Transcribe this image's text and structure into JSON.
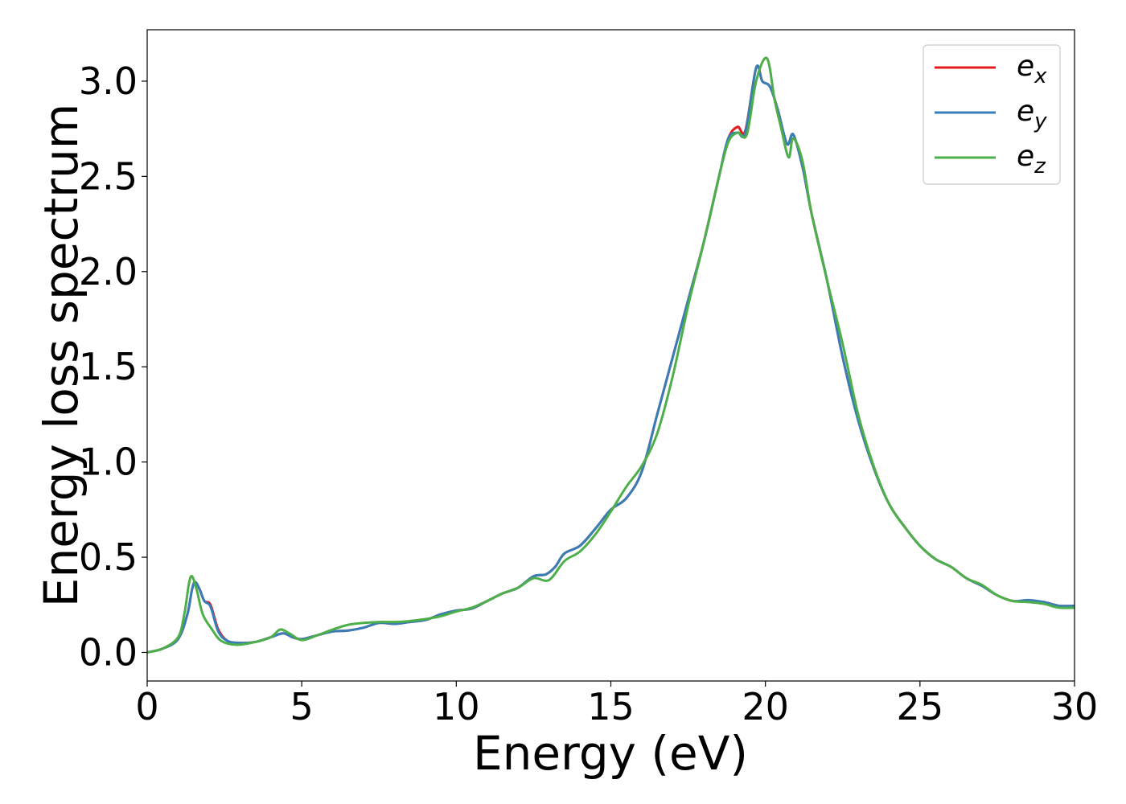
{
  "chart_data": {
    "type": "line",
    "xlabel": "Energy (eV)",
    "ylabel": "Energy loss spectrum",
    "xlim": [
      0,
      30
    ],
    "ylim": [
      -0.15,
      3.27
    ],
    "xticks": [
      0,
      5,
      10,
      15,
      20,
      25,
      30
    ],
    "yticks": [
      0.0,
      0.5,
      1.0,
      1.5,
      2.0,
      2.5,
      3.0
    ],
    "grid": false,
    "legend_position": "top-right",
    "series": [
      {
        "name": "e_x",
        "label_base": "e",
        "label_sub": "x",
        "color": "#e41a1c",
        "points": [
          [
            0,
            0
          ],
          [
            0.5,
            0.02
          ],
          [
            1.0,
            0.07
          ],
          [
            1.3,
            0.2
          ],
          [
            1.45,
            0.33
          ],
          [
            1.55,
            0.37
          ],
          [
            1.7,
            0.33
          ],
          [
            1.85,
            0.27
          ],
          [
            2.05,
            0.25
          ],
          [
            2.3,
            0.12
          ],
          [
            2.6,
            0.06
          ],
          [
            3.0,
            0.05
          ],
          [
            3.5,
            0.055
          ],
          [
            4.0,
            0.08
          ],
          [
            4.4,
            0.1
          ],
          [
            4.7,
            0.08
          ],
          [
            5.0,
            0.07
          ],
          [
            5.5,
            0.09
          ],
          [
            6.0,
            0.11
          ],
          [
            6.5,
            0.115
          ],
          [
            7.0,
            0.13
          ],
          [
            7.5,
            0.155
          ],
          [
            8.0,
            0.15
          ],
          [
            8.5,
            0.16
          ],
          [
            9.0,
            0.17
          ],
          [
            9.5,
            0.2
          ],
          [
            10.0,
            0.22
          ],
          [
            10.5,
            0.23
          ],
          [
            11.0,
            0.27
          ],
          [
            11.5,
            0.31
          ],
          [
            12.0,
            0.34
          ],
          [
            12.5,
            0.4
          ],
          [
            12.9,
            0.41
          ],
          [
            13.2,
            0.45
          ],
          [
            13.5,
            0.52
          ],
          [
            14.0,
            0.56
          ],
          [
            14.5,
            0.65
          ],
          [
            15.0,
            0.75
          ],
          [
            15.5,
            0.81
          ],
          [
            16.0,
            0.95
          ],
          [
            16.5,
            1.25
          ],
          [
            17.0,
            1.55
          ],
          [
            17.5,
            1.85
          ],
          [
            18.0,
            2.15
          ],
          [
            18.5,
            2.5
          ],
          [
            18.8,
            2.7
          ],
          [
            19.1,
            2.76
          ],
          [
            19.35,
            2.74
          ],
          [
            19.7,
            3.07
          ],
          [
            19.9,
            3.0
          ],
          [
            20.15,
            2.97
          ],
          [
            20.4,
            2.85
          ],
          [
            20.7,
            2.67
          ],
          [
            20.9,
            2.72
          ],
          [
            21.2,
            2.55
          ],
          [
            21.5,
            2.3
          ],
          [
            22.0,
            1.95
          ],
          [
            22.5,
            1.55
          ],
          [
            23.0,
            1.22
          ],
          [
            23.5,
            0.97
          ],
          [
            24.0,
            0.78
          ],
          [
            24.5,
            0.66
          ],
          [
            25.0,
            0.56
          ],
          [
            25.5,
            0.49
          ],
          [
            26.0,
            0.45
          ],
          [
            26.5,
            0.39
          ],
          [
            27.0,
            0.35
          ],
          [
            27.5,
            0.3
          ],
          [
            28.0,
            0.27
          ],
          [
            28.5,
            0.27
          ],
          [
            29.0,
            0.265
          ],
          [
            29.5,
            0.245
          ],
          [
            30.0,
            0.245
          ]
        ]
      },
      {
        "name": "e_y",
        "label_base": "e",
        "label_sub": "y",
        "color": "#377eb8",
        "points": [
          [
            0,
            0
          ],
          [
            0.5,
            0.02
          ],
          [
            1.0,
            0.07
          ],
          [
            1.3,
            0.2
          ],
          [
            1.45,
            0.33
          ],
          [
            1.55,
            0.37
          ],
          [
            1.7,
            0.33
          ],
          [
            1.85,
            0.27
          ],
          [
            2.05,
            0.24
          ],
          [
            2.3,
            0.11
          ],
          [
            2.6,
            0.06
          ],
          [
            3.0,
            0.05
          ],
          [
            3.5,
            0.055
          ],
          [
            4.0,
            0.08
          ],
          [
            4.4,
            0.1
          ],
          [
            4.7,
            0.08
          ],
          [
            5.0,
            0.07
          ],
          [
            5.5,
            0.09
          ],
          [
            6.0,
            0.11
          ],
          [
            6.5,
            0.115
          ],
          [
            7.0,
            0.13
          ],
          [
            7.5,
            0.155
          ],
          [
            8.0,
            0.15
          ],
          [
            8.5,
            0.16
          ],
          [
            9.0,
            0.17
          ],
          [
            9.5,
            0.2
          ],
          [
            10.0,
            0.22
          ],
          [
            10.5,
            0.23
          ],
          [
            11.0,
            0.27
          ],
          [
            11.5,
            0.31
          ],
          [
            12.0,
            0.34
          ],
          [
            12.5,
            0.4
          ],
          [
            12.9,
            0.41
          ],
          [
            13.2,
            0.45
          ],
          [
            13.5,
            0.52
          ],
          [
            14.0,
            0.56
          ],
          [
            14.5,
            0.65
          ],
          [
            15.0,
            0.75
          ],
          [
            15.5,
            0.81
          ],
          [
            16.0,
            0.95
          ],
          [
            16.5,
            1.25
          ],
          [
            17.0,
            1.55
          ],
          [
            17.5,
            1.85
          ],
          [
            18.0,
            2.15
          ],
          [
            18.5,
            2.5
          ],
          [
            18.8,
            2.7
          ],
          [
            19.1,
            2.73
          ],
          [
            19.35,
            2.73
          ],
          [
            19.7,
            3.07
          ],
          [
            19.9,
            3.0
          ],
          [
            20.15,
            2.97
          ],
          [
            20.4,
            2.85
          ],
          [
            20.7,
            2.67
          ],
          [
            20.9,
            2.72
          ],
          [
            21.2,
            2.55
          ],
          [
            21.5,
            2.3
          ],
          [
            22.0,
            1.95
          ],
          [
            22.5,
            1.55
          ],
          [
            23.0,
            1.22
          ],
          [
            23.5,
            0.97
          ],
          [
            24.0,
            0.78
          ],
          [
            24.5,
            0.66
          ],
          [
            25.0,
            0.56
          ],
          [
            25.5,
            0.49
          ],
          [
            26.0,
            0.45
          ],
          [
            26.5,
            0.39
          ],
          [
            27.0,
            0.35
          ],
          [
            27.5,
            0.3
          ],
          [
            28.0,
            0.27
          ],
          [
            28.5,
            0.275
          ],
          [
            29.0,
            0.265
          ],
          [
            29.5,
            0.245
          ],
          [
            30.0,
            0.245
          ]
        ]
      },
      {
        "name": "e_z",
        "label_base": "e",
        "label_sub": "z",
        "color": "#4daf4a",
        "points": [
          [
            0,
            0
          ],
          [
            0.5,
            0.02
          ],
          [
            1.0,
            0.08
          ],
          [
            1.2,
            0.2
          ],
          [
            1.35,
            0.36
          ],
          [
            1.45,
            0.4
          ],
          [
            1.6,
            0.33
          ],
          [
            1.8,
            0.2
          ],
          [
            2.1,
            0.12
          ],
          [
            2.4,
            0.06
          ],
          [
            2.9,
            0.04
          ],
          [
            3.5,
            0.055
          ],
          [
            4.0,
            0.08
          ],
          [
            4.3,
            0.12
          ],
          [
            4.6,
            0.1
          ],
          [
            5.0,
            0.065
          ],
          [
            5.5,
            0.09
          ],
          [
            6.0,
            0.12
          ],
          [
            6.5,
            0.145
          ],
          [
            7.0,
            0.155
          ],
          [
            7.5,
            0.16
          ],
          [
            8.0,
            0.16
          ],
          [
            8.5,
            0.165
          ],
          [
            9.0,
            0.175
          ],
          [
            9.5,
            0.19
          ],
          [
            10.0,
            0.215
          ],
          [
            10.5,
            0.235
          ],
          [
            11.0,
            0.27
          ],
          [
            11.5,
            0.31
          ],
          [
            12.0,
            0.34
          ],
          [
            12.5,
            0.39
          ],
          [
            13.0,
            0.38
          ],
          [
            13.5,
            0.48
          ],
          [
            14.0,
            0.53
          ],
          [
            14.5,
            0.62
          ],
          [
            15.0,
            0.74
          ],
          [
            15.5,
            0.87
          ],
          [
            16.0,
            0.98
          ],
          [
            16.5,
            1.15
          ],
          [
            17.0,
            1.45
          ],
          [
            17.5,
            1.82
          ],
          [
            18.0,
            2.15
          ],
          [
            18.5,
            2.5
          ],
          [
            18.8,
            2.68
          ],
          [
            19.1,
            2.73
          ],
          [
            19.4,
            2.72
          ],
          [
            19.7,
            3.0
          ],
          [
            20.05,
            3.12
          ],
          [
            20.3,
            2.9
          ],
          [
            20.5,
            2.76
          ],
          [
            20.75,
            2.6
          ],
          [
            20.9,
            2.7
          ],
          [
            21.2,
            2.58
          ],
          [
            21.5,
            2.3
          ],
          [
            22.0,
            1.95
          ],
          [
            22.5,
            1.62
          ],
          [
            23.0,
            1.25
          ],
          [
            23.5,
            0.98
          ],
          [
            24.0,
            0.78
          ],
          [
            24.5,
            0.66
          ],
          [
            25.0,
            0.56
          ],
          [
            25.5,
            0.49
          ],
          [
            26.0,
            0.45
          ],
          [
            26.5,
            0.39
          ],
          [
            27.0,
            0.355
          ],
          [
            27.5,
            0.3
          ],
          [
            28.0,
            0.27
          ],
          [
            28.5,
            0.265
          ],
          [
            29.0,
            0.255
          ],
          [
            29.5,
            0.235
          ],
          [
            30.0,
            0.235
          ]
        ]
      }
    ]
  }
}
